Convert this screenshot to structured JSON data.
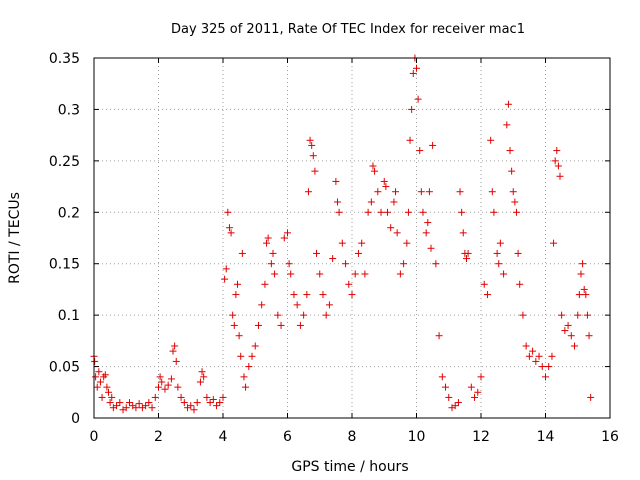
{
  "chart_data": {
    "type": "scatter",
    "title": "Day 325 of 2011, Rate Of TEC Index for receiver mac1",
    "xlabel": "GPS time / hours",
    "ylabel": "ROTI / TECUs",
    "xlim": [
      0,
      16
    ],
    "ylim": [
      0,
      0.35
    ],
    "xticks": [
      0,
      2,
      4,
      6,
      8,
      10,
      12,
      14,
      16
    ],
    "xtick_labels": [
      "0",
      "2",
      "4",
      "6",
      "8",
      "10",
      "12",
      "14",
      "16"
    ],
    "yticks": [
      0,
      0.05,
      0.1,
      0.15,
      0.2,
      0.25,
      0.3,
      0.35
    ],
    "ytick_labels": [
      "0",
      "0.05",
      "0.1",
      "0.15",
      "0.2",
      "0.25",
      "0.3",
      "0.35"
    ],
    "grid": true,
    "marker": "+",
    "color": "#e00000",
    "series": [
      {
        "name": "mac1",
        "points": [
          [
            0.0,
            0.06
          ],
          [
            0.02,
            0.055
          ],
          [
            0.05,
            0.04
          ],
          [
            0.1,
            0.03
          ],
          [
            0.15,
            0.045
          ],
          [
            0.2,
            0.035
          ],
          [
            0.25,
            0.02
          ],
          [
            0.3,
            0.04
          ],
          [
            0.35,
            0.042
          ],
          [
            0.4,
            0.03
          ],
          [
            0.45,
            0.025
          ],
          [
            0.5,
            0.015
          ],
          [
            0.55,
            0.02
          ],
          [
            0.6,
            0.01
          ],
          [
            0.7,
            0.012
          ],
          [
            0.8,
            0.015
          ],
          [
            0.9,
            0.008
          ],
          [
            1.0,
            0.01
          ],
          [
            1.1,
            0.015
          ],
          [
            1.2,
            0.012
          ],
          [
            1.3,
            0.01
          ],
          [
            1.4,
            0.014
          ],
          [
            1.5,
            0.01
          ],
          [
            1.6,
            0.012
          ],
          [
            1.7,
            0.015
          ],
          [
            1.8,
            0.01
          ],
          [
            1.9,
            0.02
          ],
          [
            2.0,
            0.03
          ],
          [
            2.05,
            0.04
          ],
          [
            2.1,
            0.035
          ],
          [
            2.2,
            0.028
          ],
          [
            2.3,
            0.032
          ],
          [
            2.4,
            0.038
          ],
          [
            2.45,
            0.065
          ],
          [
            2.5,
            0.07
          ],
          [
            2.55,
            0.055
          ],
          [
            2.6,
            0.03
          ],
          [
            2.7,
            0.02
          ],
          [
            2.8,
            0.015
          ],
          [
            2.9,
            0.01
          ],
          [
            3.0,
            0.012
          ],
          [
            3.1,
            0.008
          ],
          [
            3.2,
            0.015
          ],
          [
            3.3,
            0.035
          ],
          [
            3.35,
            0.045
          ],
          [
            3.4,
            0.04
          ],
          [
            3.5,
            0.02
          ],
          [
            3.6,
            0.015
          ],
          [
            3.7,
            0.018
          ],
          [
            3.8,
            0.012
          ],
          [
            3.9,
            0.015
          ],
          [
            4.0,
            0.02
          ],
          [
            4.05,
            0.135
          ],
          [
            4.1,
            0.145
          ],
          [
            4.15,
            0.2
          ],
          [
            4.2,
            0.185
          ],
          [
            4.25,
            0.18
          ],
          [
            4.3,
            0.1
          ],
          [
            4.35,
            0.09
          ],
          [
            4.4,
            0.12
          ],
          [
            4.45,
            0.13
          ],
          [
            4.5,
            0.08
          ],
          [
            4.55,
            0.06
          ],
          [
            4.6,
            0.16
          ],
          [
            4.65,
            0.04
          ],
          [
            4.7,
            0.03
          ],
          [
            4.8,
            0.05
          ],
          [
            4.9,
            0.06
          ],
          [
            5.0,
            0.07
          ],
          [
            5.1,
            0.09
          ],
          [
            5.2,
            0.11
          ],
          [
            5.3,
            0.13
          ],
          [
            5.35,
            0.17
          ],
          [
            5.4,
            0.175
          ],
          [
            5.5,
            0.15
          ],
          [
            5.55,
            0.16
          ],
          [
            5.6,
            0.14
          ],
          [
            5.7,
            0.1
          ],
          [
            5.8,
            0.09
          ],
          [
            5.9,
            0.175
          ],
          [
            6.0,
            0.18
          ],
          [
            6.05,
            0.15
          ],
          [
            6.1,
            0.14
          ],
          [
            6.2,
            0.12
          ],
          [
            6.3,
            0.11
          ],
          [
            6.4,
            0.09
          ],
          [
            6.5,
            0.1
          ],
          [
            6.6,
            0.12
          ],
          [
            6.65,
            0.22
          ],
          [
            6.7,
            0.27
          ],
          [
            6.75,
            0.265
          ],
          [
            6.8,
            0.255
          ],
          [
            6.85,
            0.24
          ],
          [
            6.9,
            0.16
          ],
          [
            7.0,
            0.14
          ],
          [
            7.1,
            0.12
          ],
          [
            7.2,
            0.1
          ],
          [
            7.3,
            0.11
          ],
          [
            7.4,
            0.155
          ],
          [
            7.5,
            0.23
          ],
          [
            7.55,
            0.21
          ],
          [
            7.6,
            0.2
          ],
          [
            7.7,
            0.17
          ],
          [
            7.8,
            0.15
          ],
          [
            7.9,
            0.13
          ],
          [
            8.0,
            0.12
          ],
          [
            8.1,
            0.14
          ],
          [
            8.2,
            0.16
          ],
          [
            8.3,
            0.17
          ],
          [
            8.4,
            0.14
          ],
          [
            8.5,
            0.2
          ],
          [
            8.6,
            0.21
          ],
          [
            8.65,
            0.245
          ],
          [
            8.7,
            0.24
          ],
          [
            8.8,
            0.22
          ],
          [
            8.9,
            0.2
          ],
          [
            9.0,
            0.23
          ],
          [
            9.05,
            0.225
          ],
          [
            9.1,
            0.2
          ],
          [
            9.2,
            0.185
          ],
          [
            9.3,
            0.21
          ],
          [
            9.35,
            0.22
          ],
          [
            9.4,
            0.18
          ],
          [
            9.5,
            0.14
          ],
          [
            9.6,
            0.15
          ],
          [
            9.7,
            0.17
          ],
          [
            9.75,
            0.2
          ],
          [
            9.8,
            0.27
          ],
          [
            9.85,
            0.3
          ],
          [
            9.9,
            0.335
          ],
          [
            9.95,
            0.35
          ],
          [
            10.0,
            0.34
          ],
          [
            10.05,
            0.31
          ],
          [
            10.1,
            0.26
          ],
          [
            10.15,
            0.22
          ],
          [
            10.2,
            0.2
          ],
          [
            10.3,
            0.18
          ],
          [
            10.35,
            0.19
          ],
          [
            10.4,
            0.22
          ],
          [
            10.45,
            0.165
          ],
          [
            10.5,
            0.265
          ],
          [
            10.6,
            0.15
          ],
          [
            10.7,
            0.08
          ],
          [
            10.8,
            0.04
          ],
          [
            10.9,
            0.03
          ],
          [
            11.0,
            0.02
          ],
          [
            11.1,
            0.01
          ],
          [
            11.2,
            0.012
          ],
          [
            11.3,
            0.015
          ],
          [
            11.35,
            0.22
          ],
          [
            11.4,
            0.2
          ],
          [
            11.45,
            0.18
          ],
          [
            11.5,
            0.16
          ],
          [
            11.55,
            0.155
          ],
          [
            11.6,
            0.16
          ],
          [
            11.7,
            0.03
          ],
          [
            11.8,
            0.02
          ],
          [
            11.9,
            0.025
          ],
          [
            12.0,
            0.04
          ],
          [
            12.1,
            0.13
          ],
          [
            12.2,
            0.12
          ],
          [
            12.3,
            0.27
          ],
          [
            12.35,
            0.22
          ],
          [
            12.4,
            0.2
          ],
          [
            12.5,
            0.16
          ],
          [
            12.55,
            0.15
          ],
          [
            12.6,
            0.17
          ],
          [
            12.7,
            0.14
          ],
          [
            12.8,
            0.285
          ],
          [
            12.85,
            0.305
          ],
          [
            12.9,
            0.26
          ],
          [
            12.95,
            0.24
          ],
          [
            13.0,
            0.22
          ],
          [
            13.05,
            0.21
          ],
          [
            13.1,
            0.2
          ],
          [
            13.15,
            0.16
          ],
          [
            13.2,
            0.13
          ],
          [
            13.3,
            0.1
          ],
          [
            13.4,
            0.07
          ],
          [
            13.5,
            0.06
          ],
          [
            13.6,
            0.065
          ],
          [
            13.7,
            0.055
          ],
          [
            13.8,
            0.06
          ],
          [
            13.9,
            0.05
          ],
          [
            14.0,
            0.04
          ],
          [
            14.1,
            0.05
          ],
          [
            14.2,
            0.06
          ],
          [
            14.25,
            0.17
          ],
          [
            14.3,
            0.25
          ],
          [
            14.35,
            0.26
          ],
          [
            14.4,
            0.245
          ],
          [
            14.45,
            0.235
          ],
          [
            14.5,
            0.1
          ],
          [
            14.6,
            0.085
          ],
          [
            14.7,
            0.09
          ],
          [
            14.8,
            0.08
          ],
          [
            14.9,
            0.07
          ],
          [
            15.0,
            0.1
          ],
          [
            15.05,
            0.12
          ],
          [
            15.1,
            0.14
          ],
          [
            15.15,
            0.15
          ],
          [
            15.2,
            0.125
          ],
          [
            15.25,
            0.12
          ],
          [
            15.3,
            0.1
          ],
          [
            15.35,
            0.08
          ],
          [
            15.4,
            0.02
          ]
        ]
      }
    ]
  }
}
